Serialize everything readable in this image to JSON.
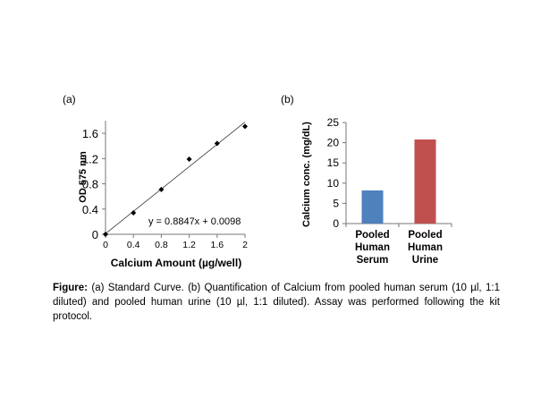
{
  "panels": {
    "a_label": "(a)",
    "b_label": "(b)"
  },
  "chart_data": [
    {
      "type": "scatter",
      "panel": "(a)",
      "xlabel": "Calcium Amount (µg/well)",
      "ylabel": "OD 575 nm",
      "xlim": [
        0,
        2
      ],
      "ylim": [
        0,
        1.8
      ],
      "xticks": [
        0,
        0.4,
        0.8,
        1.2,
        1.6,
        2
      ],
      "xtick_labels": [
        "0",
        "0.4",
        "0.8",
        "1.2",
        "1.6",
        "2"
      ],
      "yticks": [
        0,
        0.4,
        0.8,
        1.2,
        1.6
      ],
      "ytick_labels": [
        "0",
        "0.4",
        "0.8",
        "1.2",
        "1.6"
      ],
      "points": [
        {
          "x": 0,
          "y": 0
        },
        {
          "x": 0.4,
          "y": 0.34
        },
        {
          "x": 0.8,
          "y": 0.71
        },
        {
          "x": 1.2,
          "y": 1.19
        },
        {
          "x": 1.6,
          "y": 1.44
        },
        {
          "x": 2,
          "y": 1.71
        }
      ],
      "trendline": {
        "slope": 0.8847,
        "intercept": 0.0098
      },
      "equation": "y = 0.8847x + 0.0098",
      "grid": false
    },
    {
      "type": "bar",
      "panel": "(b)",
      "ylabel": "Calcium  conc.  (mg/dL)",
      "ylim": [
        0,
        25
      ],
      "yticks": [
        0,
        5,
        10,
        15,
        20,
        25
      ],
      "ytick_labels": [
        "0",
        "5",
        "10",
        "15",
        "20",
        "25"
      ],
      "categories": [
        [
          "Pooled",
          "Human",
          "Serum"
        ],
        [
          "Pooled",
          "Human",
          "Urine"
        ]
      ],
      "values": [
        8.2,
        20.8
      ],
      "colors": [
        "#4f81bd",
        "#c0504d"
      ],
      "grid": false
    }
  ],
  "caption": {
    "prefix": "Figure:",
    "text": " (a) Standard Curve. (b) Quantification of Calcium from pooled human serum (10 µl, 1:1 diluted) and pooled human urine (10 µl, 1:1 diluted). Assay was performed following the kit protocol."
  }
}
